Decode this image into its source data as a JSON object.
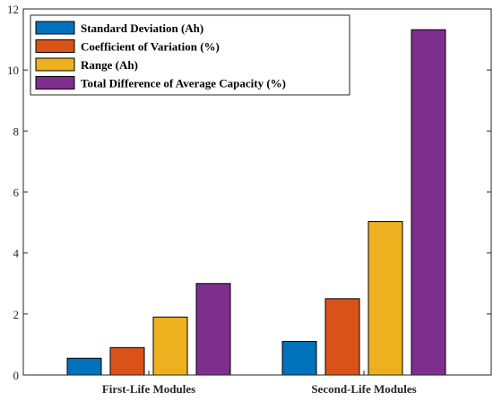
{
  "chart_data": {
    "type": "bar",
    "categories": [
      "First-Life Modules",
      "Second-Life Modules"
    ],
    "series": [
      {
        "name": "Standard Deviation (Ah)",
        "color": "#0072BD",
        "values": [
          0.55,
          1.1
        ]
      },
      {
        "name": "Coefficient of Variation (%)",
        "color": "#D95319",
        "values": [
          0.9,
          2.5
        ]
      },
      {
        "name": "Range (Ah)",
        "color": "#EDB120",
        "values": [
          1.9,
          5.03
        ]
      },
      {
        "name": "Total Difference of Average Capacity (%)",
        "color": "#7E2F8E",
        "values": [
          3.0,
          11.32
        ]
      }
    ],
    "ylim": [
      0,
      12
    ],
    "yticks": [
      "0",
      "2",
      "4",
      "6",
      "8",
      "10",
      "12"
    ],
    "title": "",
    "xlabel": "",
    "ylabel": "",
    "legend": "top-left",
    "grid": false
  }
}
